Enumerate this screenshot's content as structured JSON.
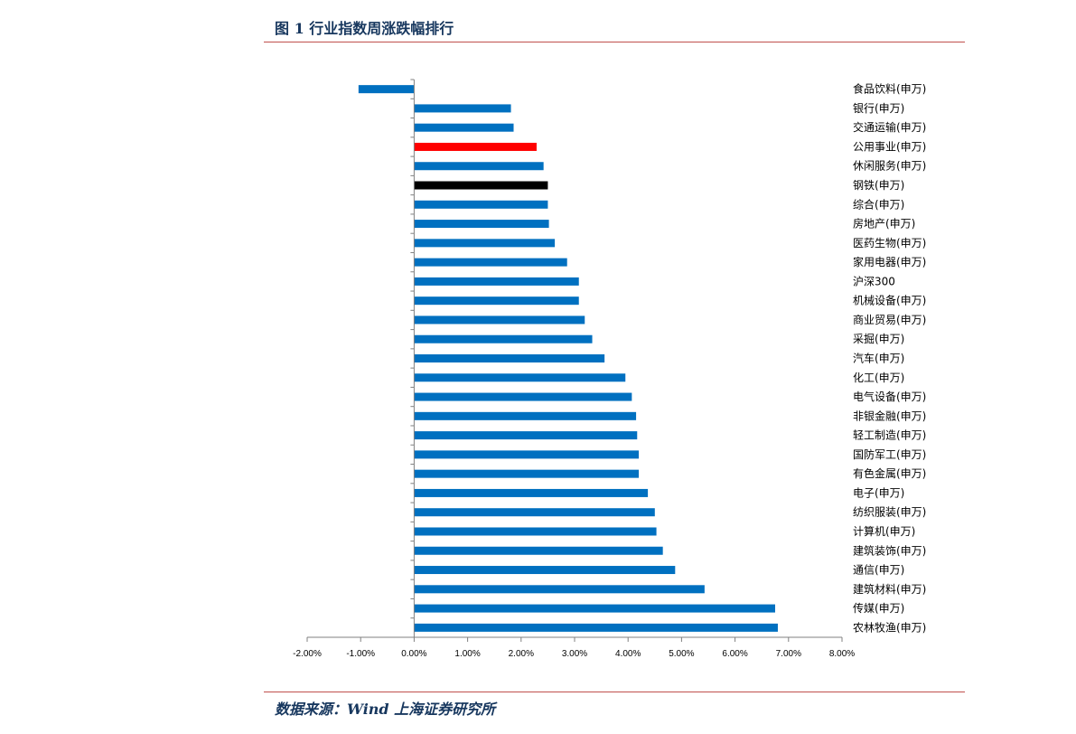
{
  "header": {
    "title": "图 1 行业指数周涨跌幅排行"
  },
  "footer": {
    "source": "数据来源：Wind  上海证券研究所"
  },
  "colors": {
    "bar_default": "#0070c0",
    "bar_highlight_red": "#ff0000",
    "bar_highlight_black": "#000000",
    "rule": "#c0504d",
    "title_text": "#17375e"
  },
  "chart_data": {
    "type": "bar",
    "orientation": "horizontal",
    "title": "",
    "xlabel": "",
    "ylabel": "",
    "xlim": [
      -0.02,
      0.08
    ],
    "grid": false,
    "legend": "none",
    "x_tick_labels": [
      "-2.00%",
      "-1.00%",
      "0.00%",
      "1.00%",
      "2.00%",
      "3.00%",
      "4.00%",
      "5.00%",
      "6.00%",
      "7.00%",
      "8.00%"
    ],
    "x_ticks": [
      -0.02,
      -0.01,
      0.0,
      0.01,
      0.02,
      0.03,
      0.04,
      0.05,
      0.06,
      0.07,
      0.08
    ],
    "categories": [
      "食品饮料(申万)",
      "银行(申万)",
      "交通运输(申万)",
      "公用事业(申万)",
      "休闲服务(申万)",
      "钢铁(申万)",
      "综合(申万)",
      "房地产(申万)",
      "医药生物(申万)",
      "家用电器(申万)",
      "沪深300",
      "机械设备(申万)",
      "商业贸易(申万)",
      "采掘(申万)",
      "汽车(申万)",
      "化工(申万)",
      "电气设备(申万)",
      "非银金融(申万)",
      "轻工制造(申万)",
      "国防军工(申万)",
      "有色金属(申万)",
      "电子(申万)",
      "纺织服装(申万)",
      "计算机(申万)",
      "建筑装饰(申万)",
      "通信(申万)",
      "建筑材料(申万)",
      "传媒(申万)",
      "农林牧渔(申万)"
    ],
    "values": [
      -0.0104,
      0.0181,
      0.0186,
      0.0229,
      0.0242,
      0.025,
      0.025,
      0.0252,
      0.0263,
      0.0286,
      0.0308,
      0.0308,
      0.0319,
      0.0333,
      0.0356,
      0.0395,
      0.0407,
      0.0415,
      0.0417,
      0.042,
      0.042,
      0.0437,
      0.045,
      0.0453,
      0.0465,
      0.0488,
      0.0543,
      0.0675,
      0.068
    ],
    "bar_colors": [
      "#0070c0",
      "#0070c0",
      "#0070c0",
      "#ff0000",
      "#0070c0",
      "#000000",
      "#0070c0",
      "#0070c0",
      "#0070c0",
      "#0070c0",
      "#0070c0",
      "#0070c0",
      "#0070c0",
      "#0070c0",
      "#0070c0",
      "#0070c0",
      "#0070c0",
      "#0070c0",
      "#0070c0",
      "#0070c0",
      "#0070c0",
      "#0070c0",
      "#0070c0",
      "#0070c0",
      "#0070c0",
      "#0070c0",
      "#0070c0",
      "#0070c0",
      "#0070c0"
    ]
  }
}
